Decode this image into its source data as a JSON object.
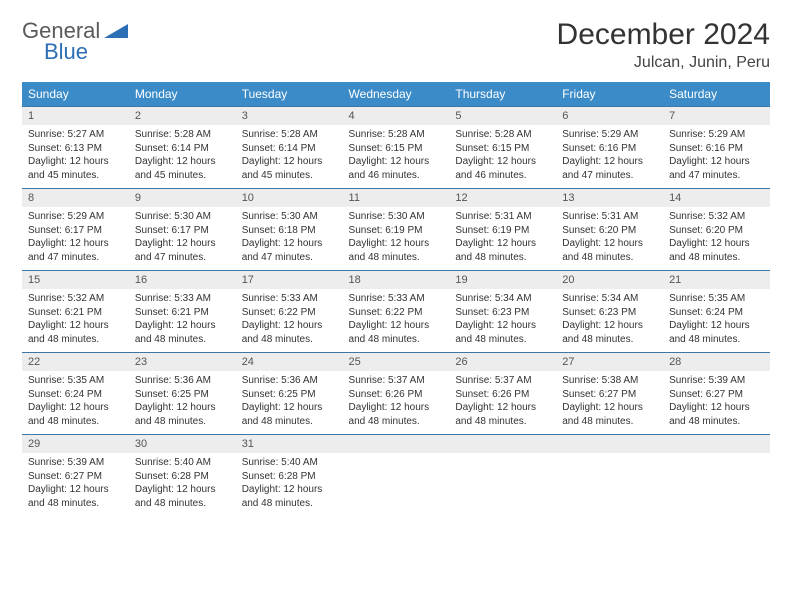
{
  "brand": {
    "part1": "General",
    "part2": "Blue",
    "triangle_color": "#2d6fb5"
  },
  "title": "December 2024",
  "location": "Julcan, Junin, Peru",
  "colors": {
    "header_bg": "#3b8bc8",
    "header_text": "#ffffff",
    "row_divider": "#3b78a8",
    "daynum_bg": "#ededed",
    "text": "#333333",
    "page_bg": "#ffffff"
  },
  "weekdays": [
    "Sunday",
    "Monday",
    "Tuesday",
    "Wednesday",
    "Thursday",
    "Friday",
    "Saturday"
  ],
  "weeks": [
    [
      {
        "day": "1",
        "sunrise": "5:27 AM",
        "sunset": "6:13 PM",
        "daylight": "12 hours and 45 minutes."
      },
      {
        "day": "2",
        "sunrise": "5:28 AM",
        "sunset": "6:14 PM",
        "daylight": "12 hours and 45 minutes."
      },
      {
        "day": "3",
        "sunrise": "5:28 AM",
        "sunset": "6:14 PM",
        "daylight": "12 hours and 45 minutes."
      },
      {
        "day": "4",
        "sunrise": "5:28 AM",
        "sunset": "6:15 PM",
        "daylight": "12 hours and 46 minutes."
      },
      {
        "day": "5",
        "sunrise": "5:28 AM",
        "sunset": "6:15 PM",
        "daylight": "12 hours and 46 minutes."
      },
      {
        "day": "6",
        "sunrise": "5:29 AM",
        "sunset": "6:16 PM",
        "daylight": "12 hours and 47 minutes."
      },
      {
        "day": "7",
        "sunrise": "5:29 AM",
        "sunset": "6:16 PM",
        "daylight": "12 hours and 47 minutes."
      }
    ],
    [
      {
        "day": "8",
        "sunrise": "5:29 AM",
        "sunset": "6:17 PM",
        "daylight": "12 hours and 47 minutes."
      },
      {
        "day": "9",
        "sunrise": "5:30 AM",
        "sunset": "6:17 PM",
        "daylight": "12 hours and 47 minutes."
      },
      {
        "day": "10",
        "sunrise": "5:30 AM",
        "sunset": "6:18 PM",
        "daylight": "12 hours and 47 minutes."
      },
      {
        "day": "11",
        "sunrise": "5:30 AM",
        "sunset": "6:19 PM",
        "daylight": "12 hours and 48 minutes."
      },
      {
        "day": "12",
        "sunrise": "5:31 AM",
        "sunset": "6:19 PM",
        "daylight": "12 hours and 48 minutes."
      },
      {
        "day": "13",
        "sunrise": "5:31 AM",
        "sunset": "6:20 PM",
        "daylight": "12 hours and 48 minutes."
      },
      {
        "day": "14",
        "sunrise": "5:32 AM",
        "sunset": "6:20 PM",
        "daylight": "12 hours and 48 minutes."
      }
    ],
    [
      {
        "day": "15",
        "sunrise": "5:32 AM",
        "sunset": "6:21 PM",
        "daylight": "12 hours and 48 minutes."
      },
      {
        "day": "16",
        "sunrise": "5:33 AM",
        "sunset": "6:21 PM",
        "daylight": "12 hours and 48 minutes."
      },
      {
        "day": "17",
        "sunrise": "5:33 AM",
        "sunset": "6:22 PM",
        "daylight": "12 hours and 48 minutes."
      },
      {
        "day": "18",
        "sunrise": "5:33 AM",
        "sunset": "6:22 PM",
        "daylight": "12 hours and 48 minutes."
      },
      {
        "day": "19",
        "sunrise": "5:34 AM",
        "sunset": "6:23 PM",
        "daylight": "12 hours and 48 minutes."
      },
      {
        "day": "20",
        "sunrise": "5:34 AM",
        "sunset": "6:23 PM",
        "daylight": "12 hours and 48 minutes."
      },
      {
        "day": "21",
        "sunrise": "5:35 AM",
        "sunset": "6:24 PM",
        "daylight": "12 hours and 48 minutes."
      }
    ],
    [
      {
        "day": "22",
        "sunrise": "5:35 AM",
        "sunset": "6:24 PM",
        "daylight": "12 hours and 48 minutes."
      },
      {
        "day": "23",
        "sunrise": "5:36 AM",
        "sunset": "6:25 PM",
        "daylight": "12 hours and 48 minutes."
      },
      {
        "day": "24",
        "sunrise": "5:36 AM",
        "sunset": "6:25 PM",
        "daylight": "12 hours and 48 minutes."
      },
      {
        "day": "25",
        "sunrise": "5:37 AM",
        "sunset": "6:26 PM",
        "daylight": "12 hours and 48 minutes."
      },
      {
        "day": "26",
        "sunrise": "5:37 AM",
        "sunset": "6:26 PM",
        "daylight": "12 hours and 48 minutes."
      },
      {
        "day": "27",
        "sunrise": "5:38 AM",
        "sunset": "6:27 PM",
        "daylight": "12 hours and 48 minutes."
      },
      {
        "day": "28",
        "sunrise": "5:39 AM",
        "sunset": "6:27 PM",
        "daylight": "12 hours and 48 minutes."
      }
    ],
    [
      {
        "day": "29",
        "sunrise": "5:39 AM",
        "sunset": "6:27 PM",
        "daylight": "12 hours and 48 minutes."
      },
      {
        "day": "30",
        "sunrise": "5:40 AM",
        "sunset": "6:28 PM",
        "daylight": "12 hours and 48 minutes."
      },
      {
        "day": "31",
        "sunrise": "5:40 AM",
        "sunset": "6:28 PM",
        "daylight": "12 hours and 48 minutes."
      },
      null,
      null,
      null,
      null
    ]
  ],
  "labels": {
    "sunrise": "Sunrise:",
    "sunset": "Sunset:",
    "daylight": "Daylight:"
  }
}
